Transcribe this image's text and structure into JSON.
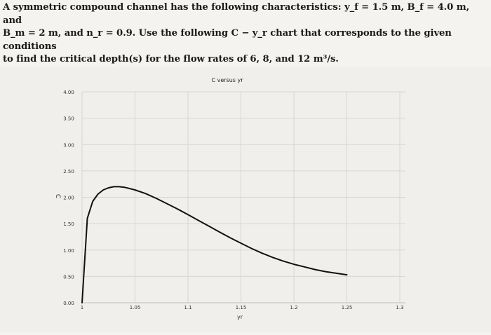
{
  "problem": {
    "line1": "A symmetric compound channel has the following characteristics: y_f = 1.5 m, B_f = 4.0 m, and",
    "line2": "B_m = 2 m, and n_r = 0.9. Use the following C − y_r chart that corresponds to the given conditions",
    "line3": "to find the critical depth(s) for the flow rates of 6, 8, and 12 m³/s."
  },
  "chart_data": {
    "type": "line",
    "title": "C versus yr",
    "xlabel": "yr",
    "ylabel": "C",
    "xlim": [
      1,
      1.3
    ],
    "ylim": [
      0,
      4.0
    ],
    "x_ticks": [
      "1",
      "1.05",
      "1.1",
      "1.15",
      "1.2",
      "1.25",
      "1.3"
    ],
    "y_ticks": [
      "0.00",
      "0.50",
      "1.00",
      "1.50",
      "2.00",
      "2.50",
      "3.00",
      "3.50",
      "4.00"
    ],
    "grid": true,
    "series": [
      {
        "color": "#111111",
        "x": [
          1.0,
          1.005,
          1.01,
          1.015,
          1.02,
          1.025,
          1.03,
          1.035,
          1.04,
          1.05,
          1.06,
          1.07,
          1.08,
          1.09,
          1.1,
          1.11,
          1.12,
          1.13,
          1.14,
          1.15,
          1.16,
          1.17,
          1.18,
          1.19,
          1.2,
          1.21,
          1.22,
          1.23,
          1.24,
          1.25
        ],
        "y": [
          0.0,
          1.6,
          1.92,
          2.06,
          2.14,
          2.18,
          2.2,
          2.2,
          2.19,
          2.14,
          2.07,
          1.98,
          1.88,
          1.78,
          1.67,
          1.56,
          1.45,
          1.34,
          1.23,
          1.13,
          1.03,
          0.94,
          0.86,
          0.79,
          0.73,
          0.68,
          0.63,
          0.59,
          0.56,
          0.53
        ]
      }
    ]
  }
}
